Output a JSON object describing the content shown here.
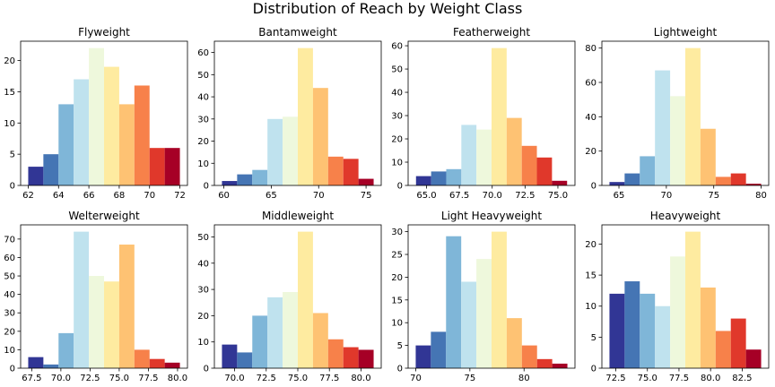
{
  "figure": {
    "title": "Distribution of Reach by Weight Class"
  },
  "palette": [
    "#313695",
    "#4575b4",
    "#74add1",
    "#abd9e9",
    "#e0f3f8",
    "#fee090",
    "#fdae61",
    "#f46d43",
    "#d73027",
    "#a50026"
  ],
  "palette_used": [
    "#313695",
    "#4575b4",
    "#7fb6d8",
    "#bfe2ee",
    "#eef8dc",
    "#feeba0",
    "#fec273",
    "#f7814a",
    "#e0382b",
    "#a60026"
  ],
  "chart_data": [
    {
      "type": "bar",
      "title": "Flyweight",
      "bin_start": 62,
      "bin_width": 1,
      "values": [
        3,
        5,
        13,
        17,
        22,
        19,
        13,
        16,
        6,
        6
      ],
      "xlim": [
        61.5,
        72.5
      ],
      "ylim": [
        0,
        23.1
      ],
      "xticks": [
        62,
        64,
        66,
        68,
        70,
        72
      ],
      "xtick_labels": [
        "62",
        "64",
        "66",
        "68",
        "70",
        "72"
      ],
      "yticks": [
        0,
        5,
        10,
        15,
        20
      ],
      "ytick_labels": [
        "0",
        "5",
        "10",
        "15",
        "20"
      ]
    },
    {
      "type": "bar",
      "title": "Bantamweight",
      "bin_start": 59.8,
      "bin_width": 1.6,
      "values": [
        2,
        5,
        7,
        30,
        31,
        62,
        44,
        13,
        12,
        3
      ],
      "xlim": [
        59.0,
        76.6
      ],
      "ylim": [
        0,
        65.1
      ],
      "xticks": [
        60,
        65,
        70,
        75
      ],
      "xtick_labels": [
        "60",
        "65",
        "70",
        "75"
      ],
      "yticks": [
        0,
        10,
        20,
        30,
        40,
        50,
        60
      ],
      "ytick_labels": [
        "0",
        "10",
        "20",
        "30",
        "40",
        "50",
        "60"
      ]
    },
    {
      "type": "bar",
      "title": "Featherweight",
      "bin_start": 64.2,
      "bin_width": 1.15,
      "values": [
        4,
        6,
        7,
        26,
        24,
        59,
        29,
        17,
        12,
        2
      ],
      "xlim": [
        63.6,
        76.3
      ],
      "ylim": [
        0,
        61.95
      ],
      "xticks": [
        65.0,
        67.5,
        70.0,
        72.5,
        75.0
      ],
      "xtick_labels": [
        "65.0",
        "67.5",
        "70.0",
        "72.5",
        "75.0"
      ],
      "yticks": [
        0,
        10,
        20,
        30,
        40,
        50,
        60
      ],
      "ytick_labels": [
        "0",
        "10",
        "20",
        "30",
        "40",
        "50",
        "60"
      ]
    },
    {
      "type": "bar",
      "title": "Lightweight",
      "bin_start": 64,
      "bin_width": 1.6,
      "values": [
        2,
        7,
        17,
        67,
        52,
        80,
        33,
        5,
        7,
        1
      ],
      "xlim": [
        63.2,
        80.8
      ],
      "ylim": [
        0,
        84
      ],
      "xticks": [
        65,
        70,
        75,
        80
      ],
      "xtick_labels": [
        "65",
        "70",
        "75",
        "80"
      ],
      "yticks": [
        0,
        20,
        40,
        60,
        80
      ],
      "ytick_labels": [
        "0",
        "20",
        "40",
        "60",
        "80"
      ]
    },
    {
      "type": "bar",
      "title": "Welterweight",
      "bin_start": 67.2,
      "bin_width": 1.3,
      "values": [
        6,
        2,
        19,
        74,
        50,
        47,
        67,
        10,
        5,
        3
      ],
      "xlim": [
        66.55,
        80.85
      ],
      "ylim": [
        0,
        77.7
      ],
      "xticks": [
        67.5,
        70.0,
        72.5,
        75.0,
        77.5,
        80.0
      ],
      "xtick_labels": [
        "67.5",
        "70.0",
        "72.5",
        "75.0",
        "77.5",
        "80.0"
      ],
      "yticks": [
        0,
        10,
        20,
        30,
        40,
        50,
        60,
        70
      ],
      "ytick_labels": [
        "0",
        "10",
        "20",
        "30",
        "40",
        "50",
        "60",
        "70"
      ]
    },
    {
      "type": "bar",
      "title": "Middleweight",
      "bin_start": 69,
      "bin_width": 1.2,
      "values": [
        9,
        6,
        20,
        27,
        29,
        52,
        21,
        11,
        8,
        7
      ],
      "xlim": [
        68.4,
        81.6
      ],
      "ylim": [
        0,
        54.6
      ],
      "xticks": [
        70.0,
        72.5,
        75.0,
        77.5,
        80.0
      ],
      "xtick_labels": [
        "70.0",
        "72.5",
        "75.0",
        "77.5",
        "80.0"
      ],
      "yticks": [
        0,
        10,
        20,
        30,
        40,
        50
      ],
      "ytick_labels": [
        "0",
        "10",
        "20",
        "30",
        "40",
        "50"
      ]
    },
    {
      "type": "bar",
      "title": "Light Heavyweight",
      "bin_start": 70,
      "bin_width": 1.4,
      "values": [
        5,
        8,
        29,
        19,
        24,
        30,
        11,
        5,
        2,
        1
      ],
      "xlim": [
        69.3,
        84.7
      ],
      "ylim": [
        0,
        31.5
      ],
      "xticks": [
        70,
        75,
        80
      ],
      "xtick_labels": [
        "70",
        "75",
        "80"
      ],
      "yticks": [
        0,
        5,
        10,
        15,
        20,
        25,
        30
      ],
      "ytick_labels": [
        "0",
        "5",
        "10",
        "15",
        "20",
        "25",
        "30"
      ]
    },
    {
      "type": "bar",
      "title": "Heavyweight",
      "bin_start": 72,
      "bin_width": 1.2,
      "values": [
        12,
        14,
        12,
        10,
        18,
        22,
        13,
        6,
        8,
        3
      ],
      "xlim": [
        71.4,
        84.6
      ],
      "ylim": [
        0,
        23.1
      ],
      "xticks": [
        72.5,
        75.0,
        77.5,
        80.0,
        82.5
      ],
      "xtick_labels": [
        "72.5",
        "75.0",
        "77.5",
        "80.0",
        "82.5"
      ],
      "yticks": [
        0,
        5,
        10,
        15,
        20
      ],
      "ytick_labels": [
        "0",
        "5",
        "10",
        "15",
        "20"
      ]
    }
  ]
}
